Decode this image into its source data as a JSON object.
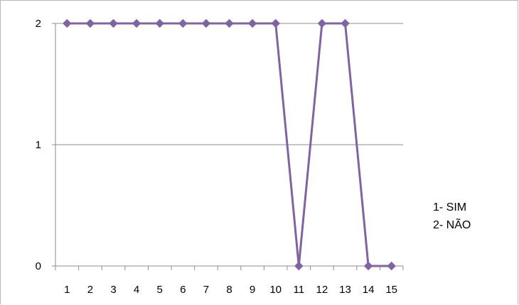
{
  "chart_data": {
    "type": "line",
    "title": "",
    "xlabel": "",
    "ylabel": "",
    "x": [
      "1",
      "2",
      "3",
      "4",
      "5",
      "6",
      "7",
      "8",
      "9",
      "10",
      "11",
      "12",
      "13",
      "14",
      "15"
    ],
    "series": [
      {
        "values": [
          2,
          2,
          2,
          2,
          2,
          2,
          2,
          2,
          2,
          2,
          0,
          2,
          2,
          0,
          0
        ],
        "color": "#8064a2",
        "marker": "diamond"
      }
    ],
    "ylim": [
      0,
      2
    ],
    "yticks": [
      "0",
      "1",
      "2"
    ],
    "grid": "horizontal",
    "legend": "none",
    "annotations": [
      "1- SIM",
      "2- NÃO"
    ]
  }
}
